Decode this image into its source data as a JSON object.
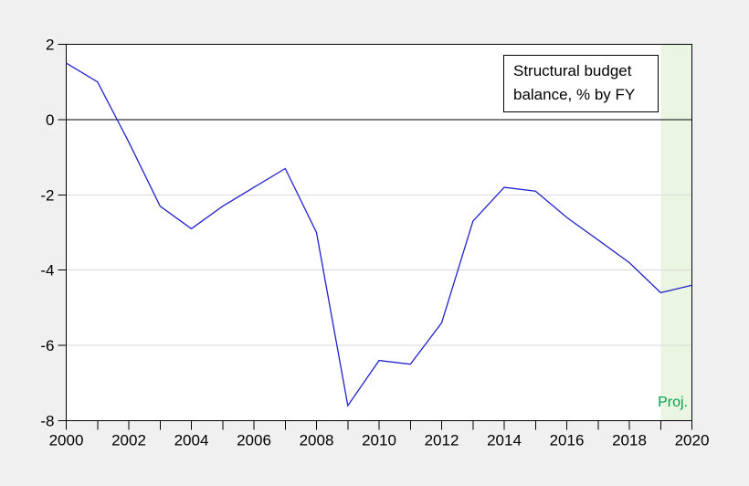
{
  "window": {
    "page_background": "#f0f0f0"
  },
  "legend": {
    "line1": "Structural budget",
    "line2": "balance, % by FY"
  },
  "projection": {
    "label": "Proj."
  },
  "chart_data": {
    "type": "line",
    "title": "Structural budget balance, % by FY",
    "x": [
      2000,
      2001,
      2002,
      2003,
      2004,
      2005,
      2006,
      2007,
      2008,
      2009,
      2010,
      2011,
      2012,
      2013,
      2014,
      2015,
      2016,
      2017,
      2018,
      2019,
      2020
    ],
    "series": [
      {
        "name": "Structural budget balance, % by FY",
        "values": [
          1.5,
          1.0,
          -0.6,
          -2.3,
          -2.9,
          -2.3,
          -1.8,
          -1.3,
          -3.0,
          -7.6,
          -6.4,
          -6.5,
          -5.4,
          -2.7,
          -1.8,
          -1.9,
          -2.6,
          -3.2,
          -3.8,
          -4.6,
          -4.4
        ]
      }
    ],
    "xlabel": "",
    "ylabel": "",
    "xlim": [
      2000,
      2020
    ],
    "ylim": [
      -8,
      2
    ],
    "yticks": [
      2,
      0,
      -2,
      -4,
      -6,
      -8
    ],
    "ytick_labels": [
      "2",
      "0",
      "-2",
      "-4",
      "-6",
      "-8"
    ],
    "xticks_labeled": [
      2000,
      2002,
      2004,
      2006,
      2008,
      2010,
      2012,
      2014,
      2016,
      2018,
      2020
    ],
    "xtick_labels": [
      "2000",
      "2002",
      "2004",
      "2006",
      "2008",
      "2010",
      "2012",
      "2014",
      "2016",
      "2018",
      "2020"
    ],
    "x_minor_tick_interval": 1,
    "grid": "horizontal gray gridlines at -2, -4, -6; solid black line at 0; full black frame",
    "legend_position": "boxed text label, top-right inside plot",
    "projection_band": {
      "x_from": 2019,
      "x_to": 2020,
      "label": "Proj."
    },
    "colors": {
      "line": "#2222cc",
      "band": "#eaf6e2",
      "grid": "#d9d9d9",
      "axis": "#000000",
      "proj_label": "#00a14b",
      "plot_bg": "#ffffff",
      "page_bg": "#f0f0f0"
    }
  }
}
